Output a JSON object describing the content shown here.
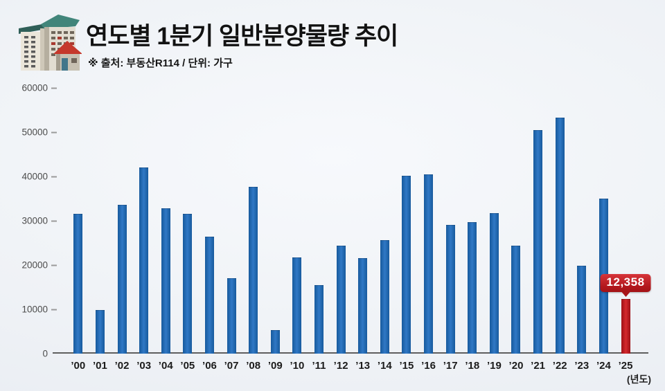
{
  "header": {
    "title": "연도별 1분기 일반분양물량 추이",
    "subtitle": "※ 출처: 부동산R114 / 단위: 가구",
    "icon": "buildings-icon"
  },
  "chart_data": {
    "type": "bar",
    "title": "연도별 1분기 일반분양물량 추이",
    "source": "부동산R114",
    "unit": "가구",
    "xlabel": "(년도)",
    "ylabel": "",
    "ylim": [
      0,
      60000
    ],
    "y_ticks": [
      0,
      10000,
      20000,
      30000,
      40000,
      50000,
      60000
    ],
    "grid": false,
    "legend": false,
    "categories": [
      "’00",
      "’01",
      "’02",
      "’03",
      "’04",
      "’05",
      "’06",
      "’07",
      "’08",
      "’09",
      "’10",
      "’11",
      "’12",
      "’13",
      "’14",
      "’15",
      "’16",
      "’17",
      "’18",
      "’19",
      "’20",
      "’21",
      "’22",
      "’23",
      "’24",
      "’25"
    ],
    "values": [
      31600,
      9900,
      33600,
      42000,
      32800,
      31600,
      26400,
      17000,
      37700,
      5300,
      21700,
      15500,
      24400,
      21600,
      25600,
      40200,
      40400,
      29100,
      29700,
      31700,
      24400,
      50500,
      53300,
      19800,
      35000,
      12358
    ],
    "bar_color": "#2268b4",
    "highlight": {
      "category": "’25",
      "value": 12358,
      "label": "12,358",
      "color": "#c0191f"
    }
  }
}
